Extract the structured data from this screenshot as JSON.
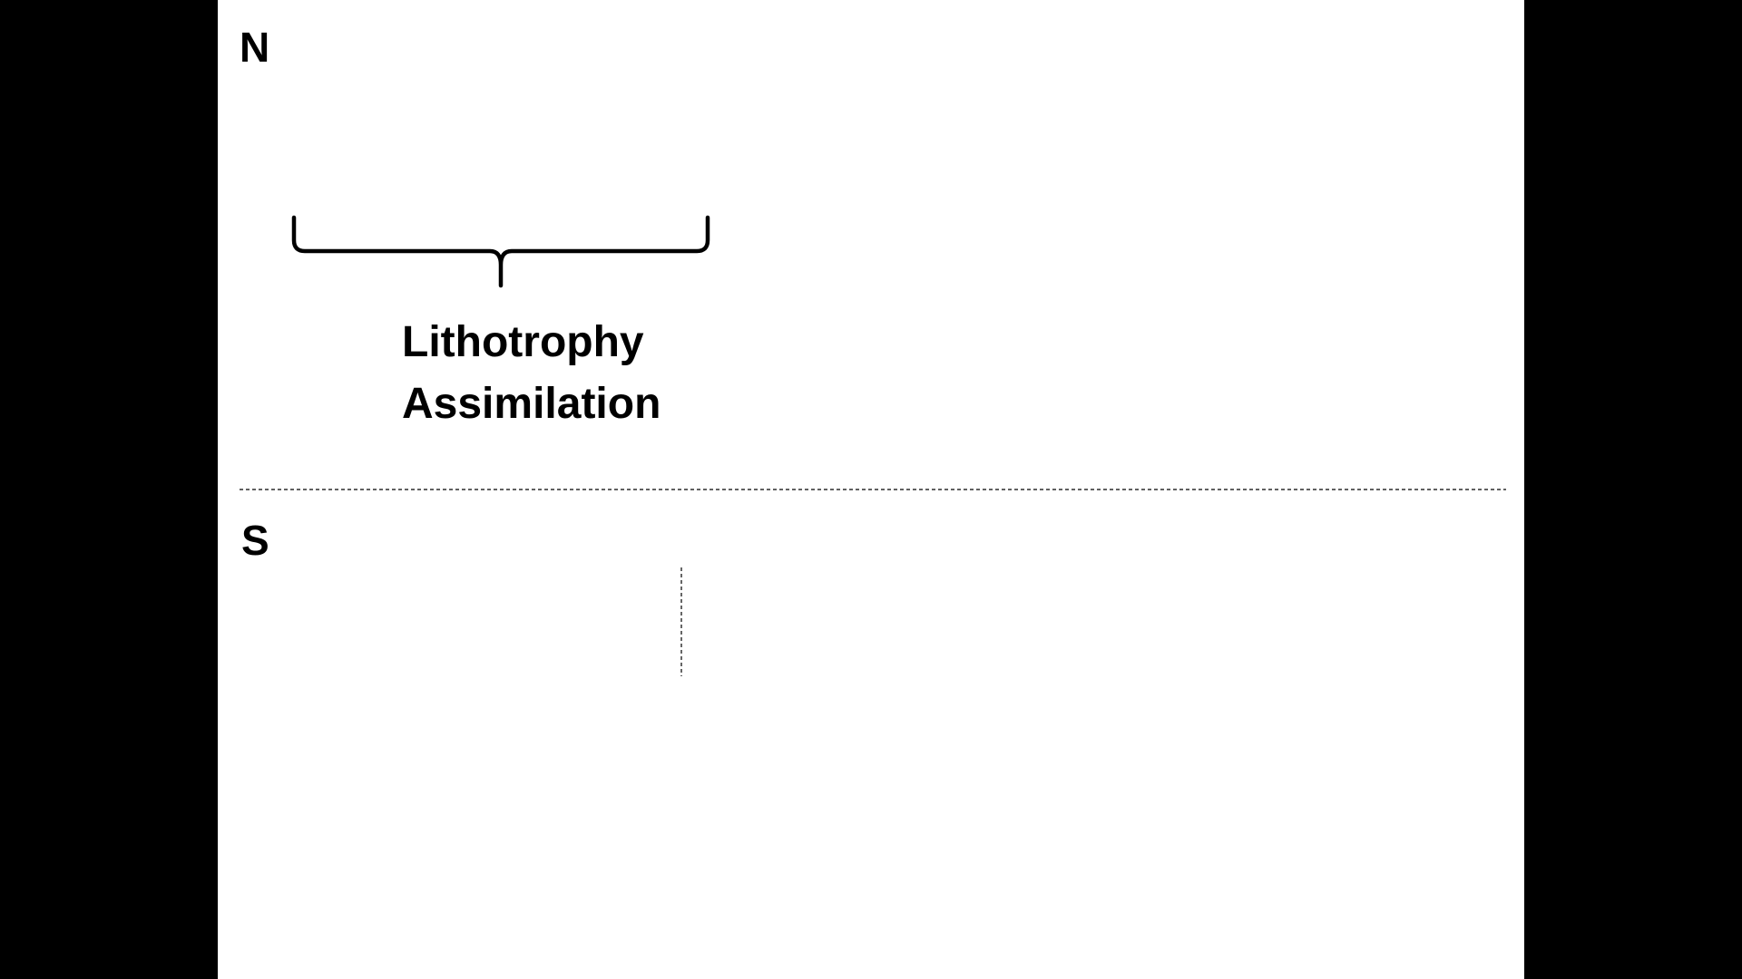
{
  "diagram": {
    "north_label": "N",
    "south_label": "S",
    "process_line1": "Lithotrophy",
    "process_line2": "Assimilation"
  },
  "colors": {
    "background": "#000000",
    "slide": "#ffffff",
    "ink": "#000000"
  },
  "icons": {
    "brace": "curly-brace-down",
    "divider": "dashed-line"
  }
}
